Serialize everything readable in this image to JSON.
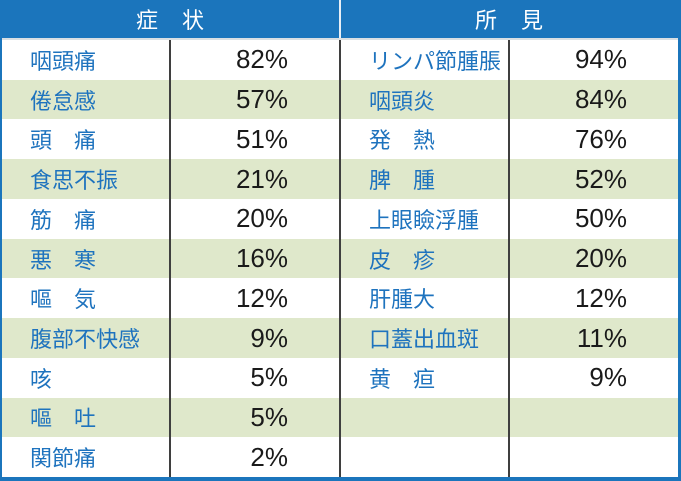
{
  "colors": {
    "header_blue": "#1B75BC",
    "row_green": "#DFE8CB",
    "label_blue": "#1E73BE",
    "divider_dark": "#3F3F3F",
    "header_text": "#FFFFFF",
    "percent_text": "#1A1A1A"
  },
  "chart_data": [
    {
      "type": "table",
      "title": "症　状",
      "rows": [
        [
          "咽頭痛",
          "82%"
        ],
        [
          "倦怠感",
          "57%"
        ],
        [
          "頭　痛",
          "51%"
        ],
        [
          "食思不振",
          "21%"
        ],
        [
          "筋　痛",
          "20%"
        ],
        [
          "悪　寒",
          "16%"
        ],
        [
          "嘔　気",
          "12%"
        ],
        [
          "腹部不快感",
          "9%"
        ],
        [
          "咳",
          "5%"
        ],
        [
          "嘔　吐",
          "5%"
        ],
        [
          "関節痛",
          "2%"
        ]
      ]
    },
    {
      "type": "table",
      "title": "所　見",
      "rows": [
        [
          "リンパ節腫脹",
          "94%"
        ],
        [
          "咽頭炎",
          "84%"
        ],
        [
          "発　熱",
          "76%"
        ],
        [
          "脾　腫",
          "52%"
        ],
        [
          "上眼瞼浮腫",
          "50%"
        ],
        [
          "皮　疹",
          "20%"
        ],
        [
          "肝腫大",
          "12%"
        ],
        [
          "口蓋出血斑",
          "11%"
        ],
        [
          "黄　疸",
          "9%"
        ]
      ]
    }
  ],
  "table": {
    "left": {
      "title": "症　状",
      "rows": [
        {
          "label": "咽頭痛",
          "pct": "82%"
        },
        {
          "label": "倦怠感",
          "pct": "57%"
        },
        {
          "label": "頭　痛",
          "pct": "51%"
        },
        {
          "label": "食思不振",
          "pct": "21%"
        },
        {
          "label": "筋　痛",
          "pct": "20%"
        },
        {
          "label": "悪　寒",
          "pct": "16%"
        },
        {
          "label": "嘔　気",
          "pct": "12%"
        },
        {
          "label": "腹部不快感",
          "pct": "9%"
        },
        {
          "label": "咳",
          "pct": "5%"
        },
        {
          "label": "嘔　吐",
          "pct": "5%"
        },
        {
          "label": "関節痛",
          "pct": "2%"
        }
      ]
    },
    "right": {
      "title": "所　見",
      "rows": [
        {
          "label": "リンパ節腫脹",
          "pct": "94%"
        },
        {
          "label": "咽頭炎",
          "pct": "84%"
        },
        {
          "label": "発　熱",
          "pct": "76%"
        },
        {
          "label": "脾　腫",
          "pct": "52%"
        },
        {
          "label": "上眼瞼浮腫",
          "pct": "50%"
        },
        {
          "label": "皮　疹",
          "pct": "20%"
        },
        {
          "label": "肝腫大",
          "pct": "12%"
        },
        {
          "label": "口蓋出血斑",
          "pct": "11%"
        },
        {
          "label": "黄　疸",
          "pct": "9%"
        },
        {
          "label": "",
          "pct": ""
        },
        {
          "label": "",
          "pct": ""
        }
      ]
    }
  }
}
